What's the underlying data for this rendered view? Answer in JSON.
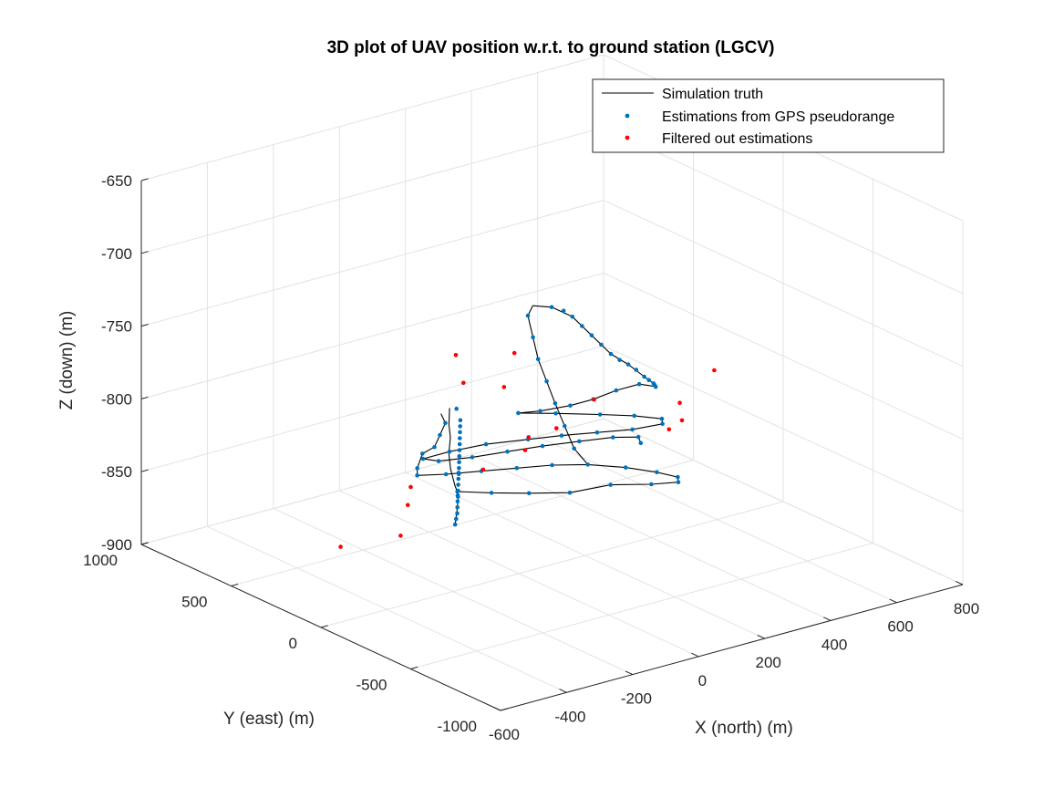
{
  "chart_data": {
    "type": "scatter",
    "projection": "3d",
    "title": "3D plot of UAV position w.r.t. to ground station (LGCV)",
    "xlabel": "X (north) (m)",
    "ylabel": "Y (east) (m)",
    "zlabel": "Z (down) (m)",
    "xlim": [
      -600,
      800
    ],
    "ylim": [
      -1000,
      1000
    ],
    "zlim": [
      -900,
      -650
    ],
    "xticks": [
      "-600",
      "-400",
      "-200",
      "0",
      "200",
      "400",
      "600",
      "800"
    ],
    "yticks": [
      "-1000",
      "-500",
      "0",
      "500",
      "1000"
    ],
    "zticks": [
      "-650",
      "-700",
      "-750",
      "-800",
      "-850",
      "-900"
    ],
    "grid": true,
    "legend_position": "top-right",
    "legend": [
      {
        "label": "Simulation truth",
        "style": "line",
        "color": "#000000"
      },
      {
        "label": "Estimations from GPS pseudorange",
        "style": "dot",
        "color": "#0072BD"
      },
      {
        "label": "Filtered out estimations",
        "style": "dot",
        "color": "#FF0000"
      }
    ],
    "series": [
      {
        "name": "Simulation truth",
        "style": "line",
        "color": "#000000",
        "segments": [
          [
            [
              -520,
              -600,
              -800
            ],
            [
              -460,
              -500,
              -800
            ],
            [
              -390,
              -380,
              -800
            ],
            [
              -330,
              -250,
              -805
            ],
            [
              -290,
              -160,
              -805
            ],
            [
              -240,
              -60,
              -810
            ],
            [
              -180,
              60,
              -810
            ],
            [
              -110,
              180,
              -810
            ],
            [
              -60,
              280,
              -810
            ],
            [
              -20,
              350,
              -805
            ]
          ],
          [
            [
              -30,
              380,
              -810
            ],
            [
              -60,
              300,
              -810
            ],
            [
              -120,
              220,
              -810
            ],
            [
              -180,
              140,
              -810
            ],
            [
              -260,
              60,
              -805
            ],
            [
              -330,
              -40,
              -805
            ],
            [
              -390,
              -150,
              -800
            ]
          ],
          [
            [
              -390,
              -150,
              -800
            ],
            [
              -330,
              -200,
              -800
            ],
            [
              -250,
              -250,
              -800
            ],
            [
              -170,
              -300,
              -800
            ],
            [
              -90,
              -350,
              -800
            ],
            [
              -20,
              -420,
              -800
            ],
            [
              40,
              -520,
              -800
            ],
            [
              80,
              -620,
              -800
            ],
            [
              100,
              -700,
              -800
            ],
            [
              80,
              -740,
              -800
            ],
            [
              20,
              -700,
              -800
            ],
            [
              -60,
              -620,
              -800
            ],
            [
              -140,
              -540,
              -805
            ],
            [
              -220,
              -460,
              -805
            ],
            [
              -290,
              -380,
              -805
            ],
            [
              -350,
              -300,
              -805
            ]
          ],
          [
            [
              -20,
              -420,
              -800
            ],
            [
              -40,
              -380,
              -790
            ],
            [
              -70,
              -330,
              -760
            ],
            [
              -100,
              -290,
              -730
            ],
            [
              -120,
              -270,
              -700
            ],
            [
              -100,
              -260,
              -695
            ]
          ],
          [
            [
              -100,
              -260,
              -695
            ],
            [
              -10,
              -200,
              -705
            ],
            [
              80,
              -150,
              -720
            ],
            [
              160,
              -110,
              -740
            ],
            [
              240,
              -70,
              -760
            ],
            [
              320,
              -20,
              -775
            ],
            [
              390,
              20,
              -790
            ],
            [
              440,
              60,
              -800
            ],
            [
              490,
              140,
              -810
            ],
            [
              520,
              200,
              -815
            ],
            [
              500,
              250,
              -815
            ],
            [
              430,
              250,
              -815
            ],
            [
              350,
              230,
              -815
            ],
            [
              280,
              230,
              -815
            ],
            [
              200,
              250,
              -815
            ],
            [
              150,
              280,
              -815
            ]
          ],
          [
            [
              150,
              280,
              -815
            ],
            [
              220,
              200,
              -815
            ],
            [
              300,
              100,
              -815
            ],
            [
              360,
              20,
              -815
            ],
            [
              400,
              -60,
              -815
            ],
            [
              380,
              -100,
              -815
            ],
            [
              300,
              -80,
              -815
            ],
            [
              220,
              -30,
              -815
            ],
            [
              140,
              20,
              -815
            ],
            [
              60,
              60,
              -815
            ],
            [
              -40,
              110,
              -815
            ],
            [
              -140,
              130,
              -815
            ],
            [
              -220,
              130,
              -815
            ]
          ],
          [
            [
              -220,
              130,
              -815
            ],
            [
              -200,
              80,
              -815
            ],
            [
              -120,
              40,
              -815
            ],
            [
              -30,
              10,
              -815
            ],
            [
              60,
              -20,
              -815
            ],
            [
              150,
              -60,
              -815
            ],
            [
              230,
              -100,
              -815
            ],
            [
              280,
              -150,
              -815
            ],
            [
              260,
              -200,
              -815
            ]
          ]
        ]
      },
      {
        "name": "Estimations from GPS pseudorange",
        "style": "dot",
        "color": "#0072BD",
        "points": [
          [
            -520,
            -600,
            -800
          ],
          [
            -495,
            -560,
            -800
          ],
          [
            -470,
            -520,
            -800
          ],
          [
            -445,
            -475,
            -800
          ],
          [
            -420,
            -430,
            -800
          ],
          [
            -395,
            -385,
            -800
          ],
          [
            -370,
            -340,
            -805
          ],
          [
            -345,
            -295,
            -805
          ],
          [
            -320,
            -250,
            -805
          ],
          [
            -295,
            -205,
            -805
          ],
          [
            -270,
            -160,
            -805
          ],
          [
            -245,
            -115,
            -810
          ],
          [
            -220,
            -70,
            -810
          ],
          [
            -195,
            -25,
            -810
          ],
          [
            -170,
            20,
            -810
          ],
          [
            -145,
            65,
            -810
          ],
          [
            -120,
            110,
            -810
          ],
          [
            -95,
            155,
            -810
          ],
          [
            -70,
            200,
            -810
          ],
          [
            -45,
            245,
            -810
          ],
          [
            -20,
            290,
            -810
          ],
          [
            -10,
            330,
            -805
          ],
          [
            -60,
            300,
            -810
          ],
          [
            -120,
            220,
            -810
          ],
          [
            -180,
            140,
            -810
          ],
          [
            -260,
            60,
            -805
          ],
          [
            -330,
            -40,
            -805
          ],
          [
            -390,
            -150,
            -800
          ],
          [
            -330,
            -200,
            -800
          ],
          [
            -250,
            -250,
            -800
          ],
          [
            -170,
            -300,
            -800
          ],
          [
            -90,
            -350,
            -800
          ],
          [
            -20,
            -420,
            -800
          ],
          [
            40,
            -520,
            -800
          ],
          [
            80,
            -620,
            -800
          ],
          [
            100,
            -700,
            -800
          ],
          [
            80,
            -740,
            -800
          ],
          [
            20,
            -700,
            -800
          ],
          [
            -60,
            -620,
            -800
          ],
          [
            -140,
            -540,
            -805
          ],
          [
            -220,
            -460,
            -805
          ],
          [
            -290,
            -380,
            -805
          ],
          [
            -350,
            -300,
            -805
          ],
          [
            -40,
            -380,
            -790
          ],
          [
            -55,
            -355,
            -775
          ],
          [
            -70,
            -330,
            -760
          ],
          [
            -85,
            -310,
            -745
          ],
          [
            -100,
            -290,
            -730
          ],
          [
            -110,
            -280,
            -715
          ],
          [
            -120,
            -270,
            -700
          ],
          [
            -10,
            -200,
            -705
          ],
          [
            40,
            -175,
            -712
          ],
          [
            80,
            -150,
            -720
          ],
          [
            120,
            -130,
            -730
          ],
          [
            160,
            -110,
            -740
          ],
          [
            200,
            -90,
            -750
          ],
          [
            240,
            -70,
            -760
          ],
          [
            280,
            -45,
            -768
          ],
          [
            320,
            -20,
            -775
          ],
          [
            355,
            0,
            -782
          ],
          [
            390,
            20,
            -790
          ],
          [
            415,
            40,
            -795
          ],
          [
            440,
            60,
            -800
          ],
          [
            465,
            100,
            -805
          ],
          [
            490,
            140,
            -810
          ],
          [
            500,
            250,
            -815
          ],
          [
            430,
            250,
            -815
          ],
          [
            350,
            230,
            -815
          ],
          [
            280,
            230,
            -815
          ],
          [
            200,
            250,
            -815
          ],
          [
            150,
            280,
            -815
          ],
          [
            220,
            200,
            -815
          ],
          [
            300,
            100,
            -815
          ],
          [
            360,
            20,
            -815
          ],
          [
            400,
            -60,
            -815
          ],
          [
            380,
            -100,
            -815
          ],
          [
            300,
            -80,
            -815
          ],
          [
            220,
            -30,
            -815
          ],
          [
            140,
            20,
            -815
          ],
          [
            60,
            60,
            -815
          ],
          [
            -40,
            110,
            -815
          ],
          [
            -140,
            130,
            -815
          ],
          [
            -220,
            130,
            -815
          ],
          [
            -200,
            80,
            -815
          ],
          [
            -120,
            40,
            -815
          ],
          [
            -30,
            10,
            -815
          ],
          [
            60,
            -20,
            -815
          ],
          [
            150,
            -60,
            -815
          ],
          [
            230,
            -100,
            -815
          ],
          [
            280,
            -150,
            -815
          ],
          [
            260,
            -200,
            -815
          ]
        ]
      },
      {
        "name": "Filtered out estimations",
        "style": "dot",
        "color": "#FF0000",
        "points": [
          [
            -600,
            -500,
            -775
          ],
          [
            -500,
            -300,
            -805
          ],
          [
            -300,
            -200,
            -720
          ],
          [
            -250,
            -150,
            -745
          ],
          [
            -100,
            -100,
            -760
          ],
          [
            -50,
            -300,
            -780
          ],
          [
            -80,
            -200,
            -790
          ],
          [
            -150,
            -250,
            -725
          ],
          [
            200,
            -50,
            -790
          ],
          [
            100,
            150,
            -830
          ],
          [
            0,
            200,
            -840
          ],
          [
            -250,
            200,
            -870
          ],
          [
            -350,
            350,
            -880
          ],
          [
            400,
            -100,
            -820
          ],
          [
            450,
            -80,
            -818
          ],
          [
            650,
            300,
            -840
          ],
          [
            700,
            200,
            -815
          ]
        ]
      }
    ]
  }
}
